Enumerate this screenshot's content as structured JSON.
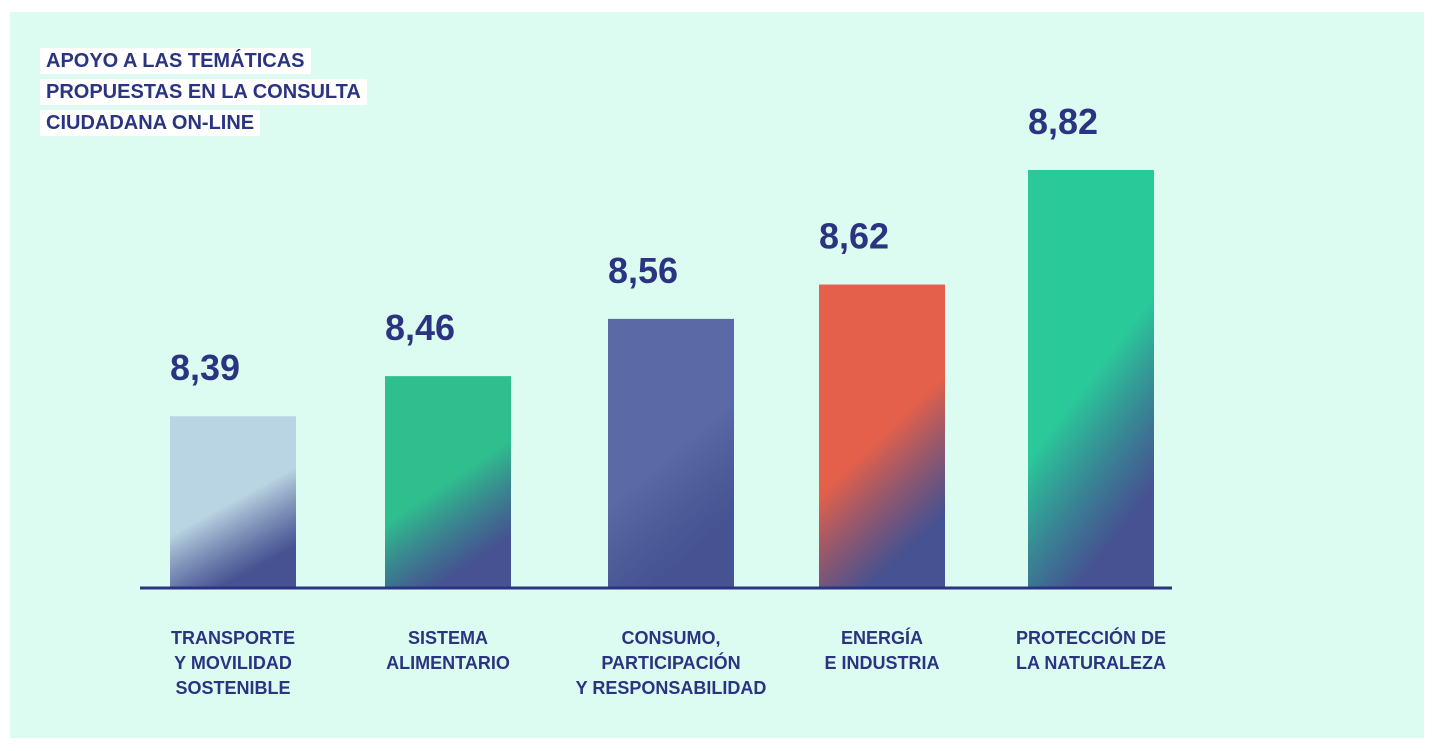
{
  "chart_data": {
    "type": "bar",
    "title": "APOYO A LAS TEMÁTICAS\nPROPUESTAS EN LA CONSULTA\nCIUDADANA ON-LINE",
    "categories": [
      "TRANSPORTE\nY MOVILIDAD\nSOSTENIBLE",
      "SISTEMA\nALIMENTARIO",
      "CONSUMO,\nPARTICIPACIÓN\nY RESPONSABILIDAD",
      "ENERGÍA\nE INDUSTRIA",
      "PROTECCIÓN DE\nLA NATURALEZA"
    ],
    "values": [
      8.39,
      8.46,
      8.56,
      8.62,
      8.82
    ],
    "value_labels": [
      "8,39",
      "8,46",
      "8,56",
      "8,62",
      "8,82"
    ],
    "colors": [
      "#b9d4e2",
      "#2fbf8f",
      "#5b6aa6",
      "#e5604a",
      "#2ac99a"
    ],
    "ylim": [
      8.09,
      8.82
    ]
  }
}
